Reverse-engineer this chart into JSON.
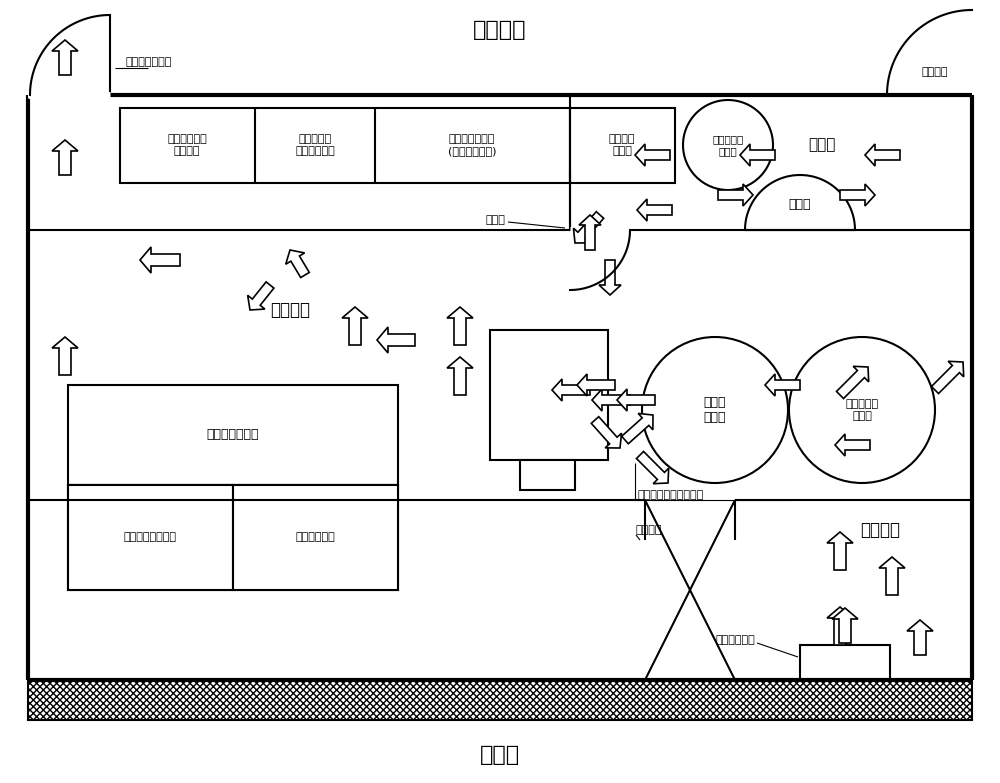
{
  "title_top": "非控制区",
  "title_bottom": "控制区",
  "label_cold": "冷更衣室",
  "label_hot": "热更衣室",
  "label_decon_room": "去污间",
  "label_shower": "淋浴喷头",
  "label_basin": "壁洗盆",
  "label_door_non": "非控制区出入门",
  "label_door_ctrl": "控制区出入门",
  "label_emerg": "应急门",
  "label_valve": "单向阀门",
  "label_monitor": "小物品表面污染检测仪",
  "label_s1a": "辐射防护值班",
  "label_s1b": "人员站位",
  "label_s2a": "电子式个人",
  "label_s2b": "剂量计储存柜",
  "label_s3a": "辐射防护用品柜",
  "label_s3b": "(含便携式仪表)",
  "label_decon_storage_a": "去污用品",
  "label_decon_storage_b": "储存柜",
  "label_rad1a": "放射性废物",
  "label_rad1b": "收集桶",
  "label_clothes": "个人衣物储存柜",
  "label_clean": "清洁工作服储存柜",
  "label_tools": "小工具储存柜",
  "label_work_a": "工作服",
  "label_work_b": "收集桶",
  "label_rad2a": "放射性废物",
  "label_rad2b": "收集桶"
}
